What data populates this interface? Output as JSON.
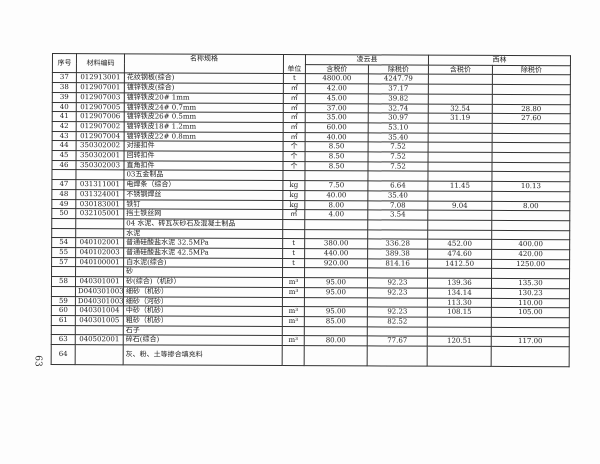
{
  "page_number": "63",
  "header": {
    "seq": "序号",
    "code": "材料编码",
    "name": "名称规格",
    "unit": "单位",
    "region1": "凌云县",
    "region2": "西林",
    "tax_incl": "含税价",
    "tax_excl": "除税价"
  },
  "rows": [
    [
      "37",
      "012913001",
      "花纹钢板(综合)",
      "t",
      "4800.00",
      "4247.79",
      "",
      ""
    ],
    [
      "38",
      "012907001",
      "镀锌铁皮(综合)",
      "㎡",
      "42.00",
      "37.17",
      "",
      ""
    ],
    [
      "39",
      "012907003",
      "镀锌铁皮20# 1mm",
      "㎡",
      "45.00",
      "39.82",
      "",
      ""
    ],
    [
      "40",
      "012907005",
      "镀锌铁皮24# 0.7mm",
      "㎡",
      "37.00",
      "32.74",
      "32.54",
      "28.80"
    ],
    [
      "41",
      "012907006",
      "镀锌铁皮26# 0.5mm",
      "㎡",
      "35.00",
      "30.97",
      "31.19",
      "27.60"
    ],
    [
      "42",
      "012907002",
      "镀锌铁皮18# 1.2mm",
      "㎡",
      "60.00",
      "53.10",
      "",
      ""
    ],
    [
      "43",
      "012907004",
      "镀锌铁皮22# 0.8mm",
      "㎡",
      "40.00",
      "35.40",
      "",
      ""
    ],
    [
      "44",
      "350302002",
      "对接扣件",
      "个",
      "8.50",
      "7.52",
      "",
      ""
    ],
    [
      "45",
      "350302001",
      "回转扣件",
      "个",
      "8.50",
      "7.52",
      "",
      ""
    ],
    [
      "46",
      "350302003",
      "直角扣件",
      "个",
      "8.50",
      "7.52",
      "",
      ""
    ],
    [
      "",
      "",
      "03五金制品",
      "",
      "",
      "",
      "",
      ""
    ],
    [
      "47",
      "031311001",
      "电焊条（综合）",
      "kg",
      "7.50",
      "6.64",
      "11.45",
      "10.13"
    ],
    [
      "48",
      "031324001",
      "不锈钢焊丝",
      "kg",
      "40.00",
      "35.40",
      "",
      ""
    ],
    [
      "49",
      "030183001",
      "铁钉",
      "kg",
      "8.00",
      "7.08",
      "9.04",
      "8.00"
    ],
    [
      "50",
      "032105001",
      "挡土铁丝网",
      "㎡",
      "4.00",
      "3.54",
      "",
      ""
    ],
    [
      "",
      "",
      "04 水泥、砖瓦灰砂石及混凝土制品",
      "",
      "",
      "",
      "",
      ""
    ],
    [
      "",
      "",
      "水泥",
      "",
      "",
      "",
      "",
      ""
    ],
    [
      "54",
      "040102001",
      "普通硅酸盐水泥 32.5MPa",
      "t",
      "380.00",
      "336.28",
      "452.00",
      "400.00"
    ],
    [
      "55",
      "040102003",
      "普通硅酸盐水泥 42.5MPa",
      "t",
      "440.00",
      "389.38",
      "474.60",
      "420.00"
    ],
    [
      "57",
      "040100001",
      "白水泥(综合)",
      "t",
      "920.00",
      "814.16",
      "1412.50",
      "1250.00"
    ],
    [
      "",
      "",
      "砂",
      "",
      "",
      "",
      "",
      ""
    ],
    [
      "58",
      "040301001",
      "砂(综合)（机砂）",
      "m³",
      "95.00",
      "92.23",
      "139.36",
      "135.30"
    ],
    [
      "",
      "D040301003",
      "细砂（机砂）",
      "m³",
      "95.00",
      "92.23",
      "134.14",
      "130.23"
    ],
    [
      "59",
      "D040301003",
      "细砂（河砂）",
      "",
      "",
      "",
      "113.30",
      "110.00"
    ],
    [
      "60",
      "040301004",
      "中砂（机砂）",
      "m³",
      "95.00",
      "92.23",
      "108.15",
      "105.00"
    ],
    [
      "61",
      "040301005",
      "粗砂（机砂）",
      "m³",
      "85.00",
      "82.52",
      "",
      ""
    ],
    [
      "",
      "",
      "石子",
      "",
      "",
      "",
      "",
      ""
    ],
    [
      "63",
      "040502001",
      "碎石(综合)",
      "m³",
      "80.00",
      "77.67",
      "120.51",
      "117.00"
    ],
    [
      "64",
      "",
      "灰、粉、土等掺合填充料",
      "",
      "",
      "",
      "",
      ""
    ]
  ]
}
